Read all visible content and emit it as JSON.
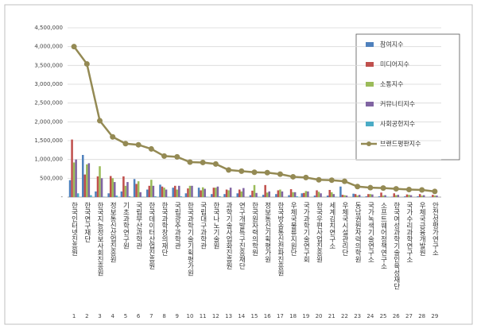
{
  "chart_data": {
    "type": "bar",
    "categories": [
      "한국인터넷진흥원",
      "한국연구재단",
      "한국지능정보사회진흥원",
      "정보통신산업진흥원",
      "기초과학연구원",
      "국립부산과학관",
      "한국데이터산업진흥원",
      "한국과학창의재단",
      "국립광주과학관",
      "한국과학기술기획평가원",
      "국립대구과학관",
      "한국나노기술원",
      "과학기술사업화진흥원",
      "연구개발특구진흥재단",
      "한국원자력의학원",
      "정보통신기획평가원",
      "한국방송통신전파진흥원",
      "우체국물류지원단",
      "국가과학기술연구회",
      "한국우편사업진흥원",
      "세계김치연구소",
      "우체국시설관리단",
      "동남권원자력의학원",
      "국가녹색기술연구소",
      "소프트웨어정책연구소",
      "한국여성과학기술인육성재단",
      "국가수리과학연구소",
      "우체국금융개발원",
      "안전성평가연구소"
    ],
    "category_numbers": [
      1,
      2,
      3,
      4,
      5,
      6,
      7,
      8,
      9,
      10,
      11,
      12,
      13,
      14,
      15,
      16,
      17,
      18,
      19,
      20,
      21,
      22,
      23,
      24,
      25,
      26,
      27,
      28,
      29
    ],
    "ylim": [
      0,
      4500000
    ],
    "yticks": [
      {
        "value": 0,
        "label": "-"
      },
      {
        "value": 500000,
        "label": "500,000"
      },
      {
        "value": 1000000,
        "label": "1,000,000"
      },
      {
        "value": 1500000,
        "label": "1,500,000"
      },
      {
        "value": 2000000,
        "label": "2,000,000"
      },
      {
        "value": 2500000,
        "label": "2,500,000"
      },
      {
        "value": 3000000,
        "label": "3,000,000"
      },
      {
        "value": 3500000,
        "label": "3,500,000"
      },
      {
        "value": 4000000,
        "label": "4,000,000"
      },
      {
        "value": 4500000,
        "label": "4,500,000"
      }
    ],
    "grid": true,
    "legend": "upper right",
    "series": [
      {
        "name": "참여지수",
        "color": "#4f81bd",
        "type": "bar",
        "values": [
          450000,
          1120000,
          150000,
          100000,
          150000,
          480000,
          200000,
          330000,
          250000,
          100000,
          250000,
          80000,
          80000,
          100000,
          50000,
          60000,
          80000,
          50000,
          100000,
          40000,
          40000,
          280000,
          90000,
          20000,
          20000,
          10000,
          20000,
          20000,
          10000
        ]
      },
      {
        "name": "미디어지수",
        "color": "#c0504d",
        "type": "bar",
        "values": [
          1530000,
          600000,
          550000,
          560000,
          550000,
          350000,
          300000,
          280000,
          300000,
          230000,
          180000,
          250000,
          200000,
          200000,
          170000,
          320000,
          180000,
          210000,
          110000,
          180000,
          190000,
          60000,
          80000,
          80000,
          120000,
          100000,
          70000,
          80000,
          60000
        ]
      },
      {
        "name": "소통지수",
        "color": "#9bbb59",
        "type": "bar",
        "values": [
          920000,
          870000,
          820000,
          500000,
          300000,
          420000,
          460000,
          250000,
          200000,
          300000,
          260000,
          250000,
          180000,
          150000,
          320000,
          120000,
          200000,
          130000,
          160000,
          140000,
          130000,
          50000,
          40000,
          80000,
          40000,
          50000,
          60000,
          40000,
          40000
        ]
      },
      {
        "name": "커뮤니티지수",
        "color": "#8064a2",
        "type": "bar",
        "values": [
          1000000,
          900000,
          500000,
          400000,
          400000,
          130000,
          300000,
          200000,
          300000,
          300000,
          220000,
          280000,
          250000,
          240000,
          110000,
          150000,
          150000,
          130000,
          150000,
          100000,
          80000,
          40000,
          60000,
          70000,
          50000,
          60000,
          50000,
          50000,
          40000
        ]
      },
      {
        "name": "사회공헌지수",
        "color": "#4bacc6",
        "type": "bar",
        "values": [
          100000,
          50000,
          10000,
          40000,
          20000,
          10000,
          20000,
          10000,
          20000,
          0,
          10000,
          20000,
          10000,
          0,
          10000,
          0,
          0,
          20000,
          0,
          0,
          10000,
          0,
          10000,
          0,
          10000,
          0,
          0,
          0,
          0
        ]
      },
      {
        "name": "브랜드평판지수",
        "color": "#948a54",
        "type": "line",
        "values": [
          4000000,
          3540000,
          2030000,
          1600000,
          1420000,
          1390000,
          1280000,
          1090000,
          1070000,
          930000,
          920000,
          880000,
          720000,
          690000,
          660000,
          650000,
          610000,
          540000,
          520000,
          460000,
          450000,
          420000,
          280000,
          250000,
          240000,
          220000,
          200000,
          190000,
          150000
        ]
      }
    ]
  }
}
